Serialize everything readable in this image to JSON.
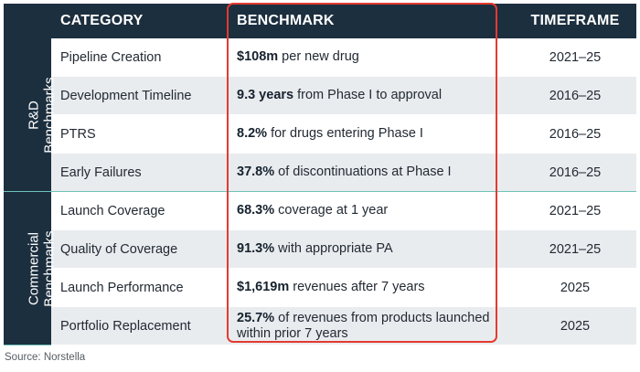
{
  "table": {
    "headers": {
      "category": "CATEGORY",
      "benchmark": "BENCHMARK",
      "timeframe": "TIMEFRAME"
    },
    "groups": {
      "rd": [
        "R&D",
        "Benchmarks"
      ],
      "commercial": [
        "Commercial",
        "Benchmarks"
      ]
    },
    "rows": [
      {
        "category": "Pipeline Creation",
        "value": "$108m",
        "desc": " per new drug",
        "timeframe": "2021–25"
      },
      {
        "category": "Development Timeline",
        "value": "9.3 years",
        "desc": " from Phase I to approval",
        "timeframe": "2016–25"
      },
      {
        "category": "PTRS",
        "value": "8.2%",
        "desc": " for drugs entering Phase I",
        "timeframe": "2016–25"
      },
      {
        "category": "Early Failures",
        "value": "37.8%",
        "desc": " of discontinuations at Phase I",
        "timeframe": "2016–25"
      },
      {
        "category": "Launch Coverage",
        "value": "68.3%",
        "desc": " coverage at 1 year",
        "timeframe": "2021–25"
      },
      {
        "category": "Quality of Coverage",
        "value": "91.3%",
        "desc": " with appropriate PA",
        "timeframe": "2021–25"
      },
      {
        "category": "Launch Performance",
        "value": "$1,619m",
        "desc": " revenues after 7 years",
        "timeframe": "2025"
      },
      {
        "category": "Portfolio Replacement",
        "value": "25.7%",
        "desc": " of revenues from products launched within prior 7 years",
        "timeframe": "2025"
      }
    ]
  },
  "footer": {
    "source": "Source: Norstella"
  },
  "colors": {
    "header_bg": "#1c2f3f",
    "divider": "#6fc3b8",
    "highlight_border": "#e53a30",
    "stripe": "#e9ecef"
  }
}
